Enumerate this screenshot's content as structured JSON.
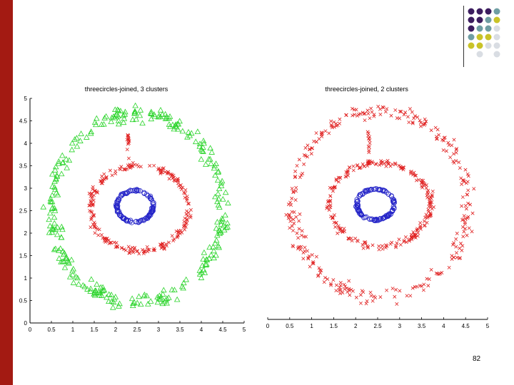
{
  "colors": {
    "left_bar": "#a31a12",
    "accent_purple": "#3b1c5e",
    "accent_teal": "#6f9ea3",
    "accent_yellow": "#c9c328",
    "accent_light": "#d9dde3",
    "cluster_green": "#2ad42a",
    "cluster_red": "#e02020",
    "cluster_blue": "#2525c8"
  },
  "decoration": {
    "dot_grid": [
      [
        "purple",
        "purple",
        "purple",
        "teal"
      ],
      [
        "purple",
        "purple",
        "teal",
        "yellow"
      ],
      [
        "purple",
        "teal",
        "teal",
        "light"
      ],
      [
        "teal",
        "yellow",
        "yellow",
        "light"
      ],
      [
        "yellow",
        "yellow",
        "light",
        "light"
      ],
      [
        "none",
        "light",
        "none",
        "light"
      ]
    ]
  },
  "page_number": "82",
  "chart_data": [
    {
      "type": "scatter",
      "title": "threecircles-joined, 3 clusters",
      "xlim": [
        0,
        5
      ],
      "ylim": [
        0,
        5
      ],
      "xticks": [
        0,
        0.5,
        1,
        1.5,
        2,
        2.5,
        3,
        3.5,
        4,
        4.5,
        5
      ],
      "yticks": [
        0,
        0.5,
        1,
        1.5,
        2,
        2.5,
        3,
        3.5,
        4,
        4.5,
        5
      ],
      "xtick_labels": [
        "0",
        "0.5",
        "1",
        "1.5",
        "2",
        "2.5",
        "3",
        "3.5",
        "4",
        "4.5",
        "5"
      ],
      "ytick_labels": [
        "0",
        "0.5",
        "1",
        "1.5",
        "2",
        "2.5",
        "3",
        "3.5",
        "4",
        "4.5",
        "5"
      ],
      "series": [
        {
          "marker": "triangle",
          "color": "#2ad42a",
          "shape": "ring",
          "center": [
            2.5,
            2.55
          ],
          "rx": 2.0,
          "ry": 2.1,
          "spread": 0.09,
          "count": 300
        },
        {
          "marker": "x",
          "color": "#e02020",
          "shape": "ring",
          "center": [
            2.55,
            2.55
          ],
          "rx": 1.15,
          "ry": 0.95,
          "spread": 0.08,
          "count": 220
        },
        {
          "marker": "x",
          "color": "#e02020",
          "shape": "bridge",
          "from": [
            2.3,
            3.5
          ],
          "to": [
            2.3,
            4.2
          ],
          "count": 14
        },
        {
          "marker": "circle",
          "color": "#2525c8",
          "shape": "ring",
          "center": [
            2.45,
            2.6
          ],
          "rx": 0.42,
          "ry": 0.35,
          "spread": 0.07,
          "count": 110
        }
      ]
    },
    {
      "type": "scatter",
      "title": "threecircles-joined, 2 clusters",
      "xlim": [
        0,
        5
      ],
      "ylim": [
        0,
        5
      ],
      "xticks": [
        0,
        0.5,
        1,
        1.5,
        2,
        2.5,
        3,
        3.5,
        4,
        4.5,
        5
      ],
      "yticks": [],
      "xtick_labels": [
        "0",
        "0.5",
        "1",
        "1.5",
        "2",
        "2.5",
        "3",
        "3.5",
        "4",
        "4.5",
        "5"
      ],
      "ytick_labels": [],
      "series": [
        {
          "marker": "x",
          "color": "#e02020",
          "shape": "ring",
          "center": [
            2.55,
            2.6
          ],
          "rx": 2.0,
          "ry": 2.1,
          "spread": 0.09,
          "count": 300
        },
        {
          "marker": "x",
          "color": "#e02020",
          "shape": "ring",
          "center": [
            2.55,
            2.6
          ],
          "rx": 1.15,
          "ry": 0.95,
          "spread": 0.08,
          "count": 220
        },
        {
          "marker": "x",
          "color": "#e02020",
          "shape": "bridge",
          "from": [
            2.3,
            3.55
          ],
          "to": [
            2.3,
            4.25
          ],
          "count": 14
        },
        {
          "marker": "circle",
          "color": "#2525c8",
          "shape": "ring",
          "center": [
            2.45,
            2.6
          ],
          "rx": 0.42,
          "ry": 0.35,
          "spread": 0.07,
          "count": 110
        }
      ]
    }
  ]
}
